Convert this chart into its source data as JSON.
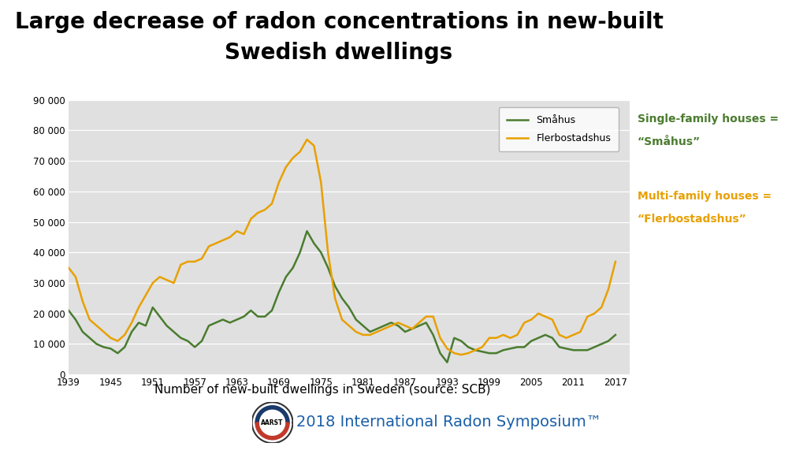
{
  "title_line1": "Large decrease of radon concentrations in new-built",
  "title_line2": "Swedish dwellings",
  "xlabel": "Number of new-built dwellings in Sweden (source: SCB)",
  "smahus_label": "Småhus",
  "flerbostadshus_label": "Flerbostadshus",
  "smahus_color": "#4a7c2f",
  "flerbostadshus_color": "#e8a000",
  "annotation_green_line1": "Single-family houses =",
  "annotation_green_line2": "“Småhus”",
  "annotation_orange_line1": "Multi-family houses =",
  "annotation_orange_line2": "“Flerbostadshus”",
  "annotation_green_color": "#4a7c2f",
  "annotation_orange_color": "#e8a000",
  "ylim": [
    0,
    90000
  ],
  "yticks": [
    0,
    10000,
    20000,
    30000,
    40000,
    50000,
    60000,
    70000,
    80000,
    90000
  ],
  "ytick_labels": [
    "0",
    "10 000",
    "20 000",
    "30 000",
    "40 000",
    "50 000",
    "60 000",
    "70 000",
    "80 000",
    "90 000"
  ],
  "xticks": [
    1939,
    1945,
    1951,
    1957,
    1963,
    1969,
    1975,
    1981,
    1987,
    1993,
    1999,
    2005,
    2011,
    2017
  ],
  "plot_bg": "#e0e0e0",
  "fig_bg": "#ffffff",
  "footer_text": "2018 International Radon Symposium™",
  "footer_color": "#1a5fa8",
  "smahus_years": [
    1939,
    1940,
    1941,
    1942,
    1943,
    1944,
    1945,
    1946,
    1947,
    1948,
    1949,
    1950,
    1951,
    1952,
    1953,
    1954,
    1955,
    1956,
    1957,
    1958,
    1959,
    1960,
    1961,
    1962,
    1963,
    1964,
    1965,
    1966,
    1967,
    1968,
    1969,
    1970,
    1971,
    1972,
    1973,
    1974,
    1975,
    1976,
    1977,
    1978,
    1979,
    1980,
    1981,
    1982,
    1983,
    1984,
    1985,
    1986,
    1987,
    1988,
    1989,
    1990,
    1991,
    1992,
    1993,
    1994,
    1995,
    1996,
    1997,
    1998,
    1999,
    2000,
    2001,
    2002,
    2003,
    2004,
    2005,
    2006,
    2007,
    2008,
    2009,
    2010,
    2011,
    2012,
    2013,
    2014,
    2015,
    2016,
    2017
  ],
  "smahus_values": [
    21000,
    18000,
    14000,
    12000,
    10000,
    9000,
    8500,
    7000,
    9000,
    14000,
    17000,
    16000,
    22000,
    19000,
    16000,
    14000,
    12000,
    11000,
    9000,
    11000,
    16000,
    17000,
    18000,
    17000,
    18000,
    19000,
    21000,
    19000,
    19000,
    21000,
    27000,
    32000,
    35000,
    40000,
    47000,
    43000,
    40000,
    35000,
    29000,
    25000,
    22000,
    18000,
    16000,
    14000,
    15000,
    16000,
    17000,
    16000,
    14000,
    15000,
    16000,
    17000,
    13000,
    7000,
    4000,
    12000,
    11000,
    9000,
    8000,
    7500,
    7000,
    7000,
    8000,
    8500,
    9000,
    9000,
    11000,
    12000,
    13000,
    12000,
    9000,
    8500,
    8000,
    8000,
    8000,
    9000,
    10000,
    11000,
    13000
  ],
  "flerbostadshus_years": [
    1939,
    1940,
    1941,
    1942,
    1943,
    1944,
    1945,
    1946,
    1947,
    1948,
    1949,
    1950,
    1951,
    1952,
    1953,
    1954,
    1955,
    1956,
    1957,
    1958,
    1959,
    1960,
    1961,
    1962,
    1963,
    1964,
    1965,
    1966,
    1967,
    1968,
    1969,
    1970,
    1971,
    1972,
    1973,
    1974,
    1975,
    1976,
    1977,
    1978,
    1979,
    1980,
    1981,
    1982,
    1983,
    1984,
    1985,
    1986,
    1987,
    1988,
    1989,
    1990,
    1991,
    1992,
    1993,
    1994,
    1995,
    1996,
    1997,
    1998,
    1999,
    2000,
    2001,
    2002,
    2003,
    2004,
    2005,
    2006,
    2007,
    2008,
    2009,
    2010,
    2011,
    2012,
    2013,
    2014,
    2015,
    2016,
    2017
  ],
  "flerbostadshus_values": [
    35000,
    32000,
    24000,
    18000,
    16000,
    14000,
    12000,
    11000,
    13000,
    17000,
    22000,
    26000,
    30000,
    32000,
    31000,
    30000,
    36000,
    37000,
    37000,
    38000,
    42000,
    43000,
    44000,
    45000,
    47000,
    46000,
    51000,
    53000,
    54000,
    56000,
    63000,
    68000,
    71000,
    73000,
    77000,
    75000,
    63000,
    40000,
    25000,
    18000,
    16000,
    14000,
    13000,
    13000,
    14000,
    15000,
    16000,
    17000,
    16000,
    15000,
    17000,
    19000,
    19000,
    12000,
    8500,
    7000,
    6500,
    7000,
    8000,
    9000,
    12000,
    12000,
    13000,
    12000,
    13000,
    17000,
    18000,
    20000,
    19000,
    18000,
    13000,
    12000,
    13000,
    14000,
    19000,
    20000,
    22000,
    28000,
    37000
  ],
  "title_fontsize": 20,
  "tick_fontsize": 8.5,
  "legend_fontsize": 9,
  "xlabel_fontsize": 11,
  "annotation_fontsize": 10,
  "footer_fontsize": 14
}
